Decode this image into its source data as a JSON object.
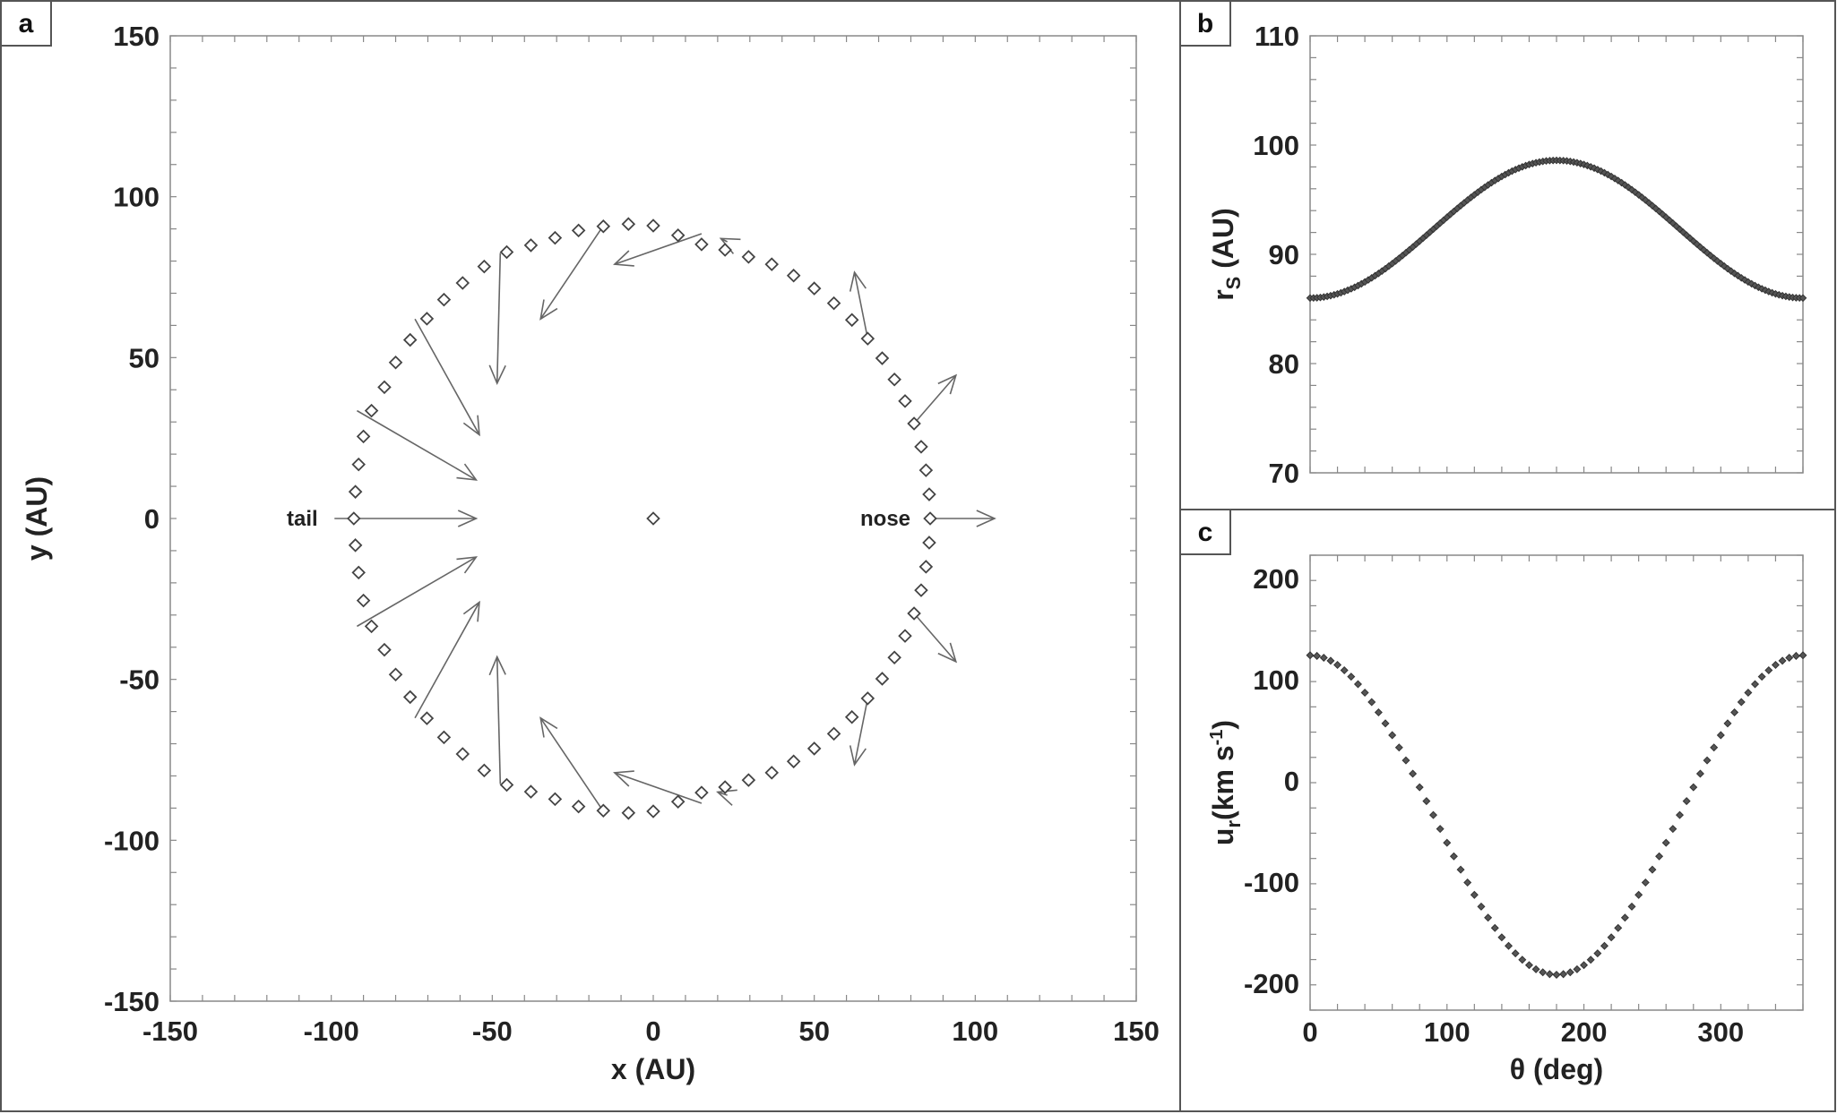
{
  "chart_data": [
    {
      "panel": "a",
      "type": "scatter",
      "xlabel": "x (AU)",
      "ylabel": "y (AU)",
      "xlim": [
        -150,
        150
      ],
      "ylim": [
        -150,
        150
      ],
      "xticks": [
        "-150",
        "-100",
        "-50",
        "0",
        "50",
        "100",
        "150"
      ],
      "yticks": [
        "150",
        "100",
        "50",
        "0",
        "-50",
        "-100",
        "-150"
      ],
      "grid": false,
      "annotations": [
        {
          "text": "tail",
          "x": -108,
          "y": 0
        },
        {
          "text": "nose",
          "x": 72,
          "y": 0
        }
      ],
      "center_point": [
        0,
        0
      ],
      "shock_points": [
        [
          86,
          0
        ],
        [
          85.7,
          7.5
        ],
        [
          84.7,
          15
        ],
        [
          83.2,
          22.3
        ],
        [
          81,
          29.5
        ],
        [
          78.2,
          36.5
        ],
        [
          74.9,
          43.2
        ],
        [
          71.1,
          49.8
        ],
        [
          66.6,
          55.9
        ],
        [
          61.7,
          61.7
        ],
        [
          56.1,
          66.9
        ],
        [
          50,
          71.5
        ],
        [
          43.6,
          75.5
        ],
        [
          36.8,
          79
        ],
        [
          29.6,
          81.3
        ],
        [
          22.3,
          83.5
        ],
        [
          15,
          85.2
        ],
        [
          7.7,
          88
        ],
        [
          0,
          91
        ],
        [
          -7.7,
          91.5
        ],
        [
          -15.5,
          90.8
        ],
        [
          -23.2,
          89.5
        ],
        [
          -30.5,
          87.2
        ],
        [
          -38,
          84.9
        ],
        [
          -45.5,
          82.8
        ],
        [
          -52.5,
          78.3
        ],
        [
          -59.2,
          73.2
        ],
        [
          -65,
          68
        ],
        [
          -70.3,
          62.1
        ],
        [
          -75.5,
          55.5
        ],
        [
          -80,
          48.5
        ],
        [
          -83.5,
          40.8
        ],
        [
          -87.5,
          33.5
        ],
        [
          -90,
          25.5
        ],
        [
          -91.5,
          16.8
        ],
        [
          -92.5,
          8.3
        ],
        [
          -93,
          0
        ],
        [
          -92.5,
          -8.3
        ],
        [
          -91.5,
          -16.8
        ],
        [
          -90,
          -25.5
        ],
        [
          -87.5,
          -33.5
        ],
        [
          -83.5,
          -40.8
        ],
        [
          -80,
          -48.5
        ],
        [
          -75.5,
          -55.5
        ],
        [
          -70.3,
          -62.1
        ],
        [
          -65,
          -68
        ],
        [
          -59.2,
          -73.2
        ],
        [
          -52.5,
          -78.3
        ],
        [
          -45.5,
          -82.8
        ],
        [
          -38,
          -84.9
        ],
        [
          -30.5,
          -87.2
        ],
        [
          -23.2,
          -89.5
        ],
        [
          -15.5,
          -90.8
        ],
        [
          -7.7,
          -91.5
        ],
        [
          0,
          -91
        ],
        [
          7.7,
          -88
        ],
        [
          15,
          -85.2
        ],
        [
          22.3,
          -83.5
        ],
        [
          29.6,
          -81.3
        ],
        [
          36.8,
          -79
        ],
        [
          43.6,
          -75.5
        ],
        [
          50,
          -71.5
        ],
        [
          56.1,
          -66.9
        ],
        [
          61.7,
          -61.7
        ],
        [
          66.6,
          -55.9
        ],
        [
          71.1,
          -49.8
        ],
        [
          74.9,
          -43.2
        ],
        [
          78.2,
          -36.5
        ],
        [
          81,
          -29.5
        ],
        [
          83.2,
          -22.3
        ],
        [
          84.7,
          -15
        ],
        [
          85.7,
          -7.5
        ]
      ],
      "velocity_arrows": [
        {
          "from": [
            86,
            0
          ],
          "to": [
            106,
            0
          ]
        },
        {
          "from": [
            81,
            29.5
          ],
          "to": [
            94,
            44.5
          ]
        },
        {
          "from": [
            81,
            -29.5
          ],
          "to": [
            94,
            -44.5
          ]
        },
        {
          "from": [
            66.6,
            55.9
          ],
          "to": [
            62.5,
            76.5
          ]
        },
        {
          "from": [
            66.6,
            -55.9
          ],
          "to": [
            62.5,
            -76.5
          ]
        },
        {
          "from": [
            23,
            86
          ],
          "to": [
            21,
            87
          ]
        },
        {
          "from": [
            23,
            -86
          ],
          "to": [
            20,
            -85
          ]
        },
        {
          "from": [
            15,
            88.5
          ],
          "to": [
            -12,
            79
          ]
        },
        {
          "from": [
            15,
            -88.5
          ],
          "to": [
            -12,
            -79
          ]
        },
        {
          "from": [
            -15.5,
            91
          ],
          "to": [
            -35,
            62
          ]
        },
        {
          "from": [
            -15.5,
            -91
          ],
          "to": [
            -35,
            -62
          ]
        },
        {
          "from": [
            -47.5,
            82.5
          ],
          "to": [
            -48.5,
            42
          ]
        },
        {
          "from": [
            -47.5,
            -82.5
          ],
          "to": [
            -48.5,
            -43
          ]
        },
        {
          "from": [
            -74,
            62
          ],
          "to": [
            -54,
            26
          ]
        },
        {
          "from": [
            -74,
            -62
          ],
          "to": [
            -54,
            -26
          ]
        },
        {
          "from": [
            -92,
            33.5
          ],
          "to": [
            -55,
            12
          ]
        },
        {
          "from": [
            -92,
            -33.5
          ],
          "to": [
            -55,
            -12
          ]
        },
        {
          "from": [
            -99,
            0
          ],
          "to": [
            -55,
            0
          ]
        }
      ]
    },
    {
      "panel": "b",
      "type": "scatter",
      "xlabel": "",
      "ylabel": "r",
      "ylabel_sub": "S",
      "ylabel_rest": " (AU)",
      "xlim": [
        0,
        360
      ],
      "ylim": [
        70,
        110
      ],
      "yticks": [
        "110",
        "100",
        "90",
        "80",
        "70"
      ],
      "grid": false,
      "curve": {
        "formula": "mean - amp*cos(theta)",
        "mean": 92.3,
        "amplitude": 6.3,
        "theta_start": 0,
        "theta_end": 360,
        "theta_step": 2.5
      }
    },
    {
      "panel": "c",
      "type": "scatter",
      "xlabel": "θ (deg)",
      "ylabel": "u",
      "ylabel_sub": "r",
      "ylabel_mid": "(km s",
      "ylabel_sup": "-1",
      "ylabel_end": ")",
      "xlim": [
        0,
        360
      ],
      "ylim": [
        -250,
        200
      ],
      "xticks": [
        "0",
        "100",
        "200",
        "300"
      ],
      "yticks": [
        "200",
        "100",
        "0",
        "-100",
        "-200"
      ],
      "grid": false,
      "curve": {
        "formula": "mean + amp*cos(theta)",
        "mean": -57,
        "amplitude": 158,
        "theta_start": 0,
        "theta_end": 360,
        "theta_step": 5
      }
    }
  ]
}
